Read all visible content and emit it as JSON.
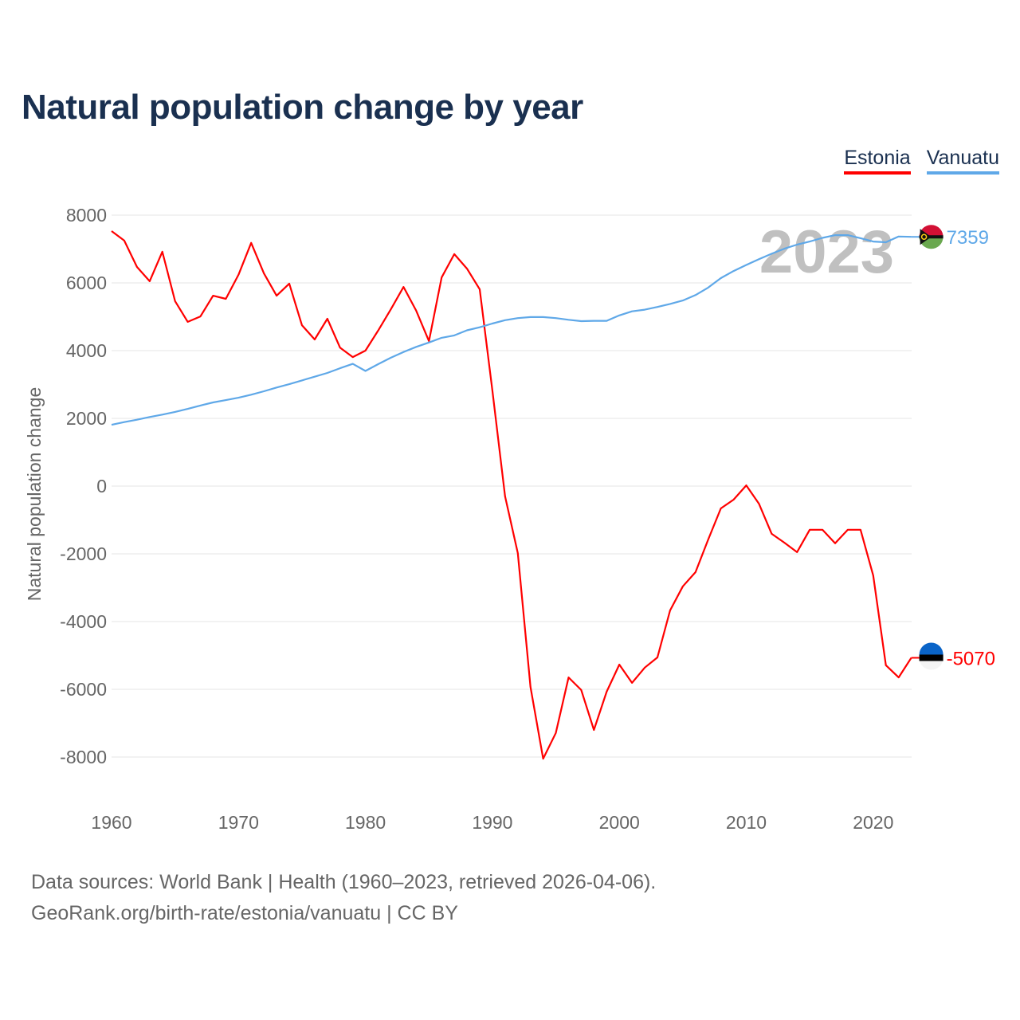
{
  "chart_data": {
    "type": "line",
    "title": "Natural population change by year",
    "xlabel": "",
    "ylabel": "Natural population change",
    "xlim": [
      1960,
      2023
    ],
    "ylim": [
      -9000,
      8500
    ],
    "x_ticks": [
      "1960",
      "1970",
      "1980",
      "1990",
      "2000",
      "2010",
      "2020"
    ],
    "y_ticks": [
      "8000",
      "6000",
      "4000",
      "2000",
      "0",
      "-2000",
      "-4000",
      "-6000",
      "-8000"
    ],
    "watermark_year": "2023",
    "legend_position": "top-right",
    "grid": true,
    "x": [
      1960,
      1961,
      1962,
      1963,
      1964,
      1965,
      1966,
      1967,
      1968,
      1969,
      1970,
      1971,
      1972,
      1973,
      1974,
      1975,
      1976,
      1977,
      1978,
      1979,
      1980,
      1981,
      1982,
      1983,
      1984,
      1985,
      1986,
      1987,
      1988,
      1989,
      1990,
      1991,
      1992,
      1993,
      1994,
      1995,
      1996,
      1997,
      1998,
      1999,
      2000,
      2001,
      2002,
      2003,
      2004,
      2005,
      2006,
      2007,
      2008,
      2009,
      2010,
      2011,
      2012,
      2013,
      2014,
      2015,
      2016,
      2017,
      2018,
      2019,
      2020,
      2021,
      2022,
      2023
    ],
    "series": [
      {
        "name": "Estonia",
        "color": "#ff0000",
        "end_label": "-5070",
        "values": [
          7530,
          7250,
          6470,
          6050,
          6920,
          5460,
          4850,
          5010,
          5620,
          5530,
          6240,
          7180,
          6280,
          5620,
          5980,
          4750,
          4330,
          4940,
          4090,
          3810,
          4000,
          4590,
          5220,
          5880,
          5180,
          4280,
          6160,
          6850,
          6420,
          5810,
          2820,
          -300,
          -1980,
          -5930,
          -8050,
          -7290,
          -5650,
          -6020,
          -7200,
          -6070,
          -5270,
          -5810,
          -5360,
          -5060,
          -3670,
          -2960,
          -2540,
          -1580,
          -660,
          -400,
          20,
          -520,
          -1410,
          -1670,
          -1950,
          -1290,
          -1290,
          -1690,
          -1290,
          -1290,
          -2640,
          -5290,
          -5650,
          -5070
        ]
      },
      {
        "name": "Vanuatu",
        "color": "#5fa8e8",
        "end_label": "7359",
        "values": [
          1810,
          1890,
          1960,
          2040,
          2110,
          2190,
          2280,
          2380,
          2470,
          2540,
          2610,
          2700,
          2800,
          2910,
          3010,
          3120,
          3230,
          3340,
          3480,
          3610,
          3400,
          3600,
          3790,
          3960,
          4110,
          4240,
          4380,
          4450,
          4600,
          4690,
          4800,
          4900,
          4960,
          4990,
          4990,
          4960,
          4910,
          4870,
          4880,
          4880,
          5040,
          5160,
          5210,
          5290,
          5380,
          5480,
          5640,
          5860,
          6140,
          6350,
          6530,
          6700,
          6860,
          7010,
          7130,
          7220,
          7330,
          7410,
          7410,
          7320,
          7220,
          7200,
          7370,
          7359
        ]
      }
    ]
  },
  "footer": {
    "line1": "Data sources: World Bank | Health (1960–2023, retrieved 2026-04-06).",
    "line2": "GeoRank.org/birth-rate/estonia/vanuatu | CC BY"
  }
}
